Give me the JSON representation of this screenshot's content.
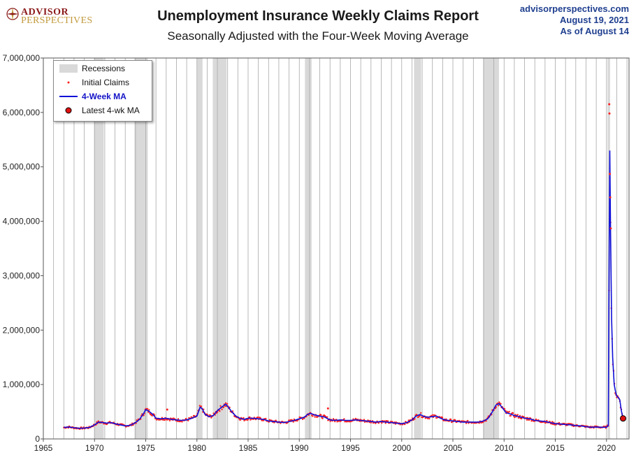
{
  "header": {
    "logo_line1": "ADVISOR",
    "logo_line2": "PERSPECTIVES",
    "title": "Unemployment Insurance Weekly Claims Report",
    "subtitle": "Seasonally Adjusted with the Four-Week Moving Average",
    "source_url": "advisorperspectives.com",
    "date": "August 19, 2021",
    "as_of": "As of August 14"
  },
  "legend": {
    "recessions": "Recessions",
    "initial_claims": "Initial Claims",
    "ma": "4-Week MA",
    "latest": "Latest 4-wk MA"
  },
  "colors": {
    "initial_claims": "#ff2020",
    "ma": "#1010d8",
    "recession": "#d9d9d9",
    "latest_marker": "#e01010"
  },
  "chart_data": {
    "type": "line",
    "title": "Unemployment Insurance Weekly Claims Report",
    "subtitle": "Seasonally Adjusted with the Four-Week Moving Average",
    "xlim": [
      1965,
      2022.2
    ],
    "ylim": [
      0,
      7000000
    ],
    "x_ticks": [
      1965,
      1970,
      1975,
      1980,
      1985,
      1990,
      1995,
      2000,
      2005,
      2010,
      2015,
      2020
    ],
    "y_ticks": [
      0,
      1000000,
      2000000,
      3000000,
      4000000,
      5000000,
      6000000,
      7000000
    ],
    "y_tick_labels": [
      "0",
      "1,000,000",
      "2,000,000",
      "3,000,000",
      "4,000,000",
      "5,000,000",
      "6,000,000",
      "7,000,000"
    ],
    "grid": "vertical",
    "legend_position": "top-left",
    "recessions": [
      [
        1969.95,
        1970.9
      ],
      [
        1973.9,
        1975.2
      ],
      [
        1980.0,
        1980.55
      ],
      [
        1981.55,
        1982.9
      ],
      [
        1990.55,
        1991.2
      ],
      [
        2001.2,
        2001.9
      ],
      [
        2007.95,
        2009.5
      ],
      [
        2020.1,
        2020.35
      ]
    ],
    "series": [
      {
        "name": "4-Week MA",
        "x": [
          1967.0,
          1967.5,
          1968.0,
          1968.5,
          1969.0,
          1969.5,
          1970.0,
          1970.4,
          1970.8,
          1971.2,
          1971.6,
          1972.0,
          1972.5,
          1973.0,
          1973.5,
          1974.0,
          1974.4,
          1974.8,
          1975.0,
          1975.3,
          1975.7,
          1976.0,
          1976.5,
          1977.0,
          1977.5,
          1978.0,
          1978.5,
          1979.0,
          1979.5,
          1980.0,
          1980.3,
          1980.5,
          1980.8,
          1981.2,
          1981.6,
          1982.0,
          1982.4,
          1982.8,
          1983.0,
          1983.4,
          1983.8,
          1984.2,
          1984.6,
          1985.0,
          1985.5,
          1986.0,
          1986.5,
          1987.0,
          1987.5,
          1988.0,
          1988.5,
          1989.0,
          1989.5,
          1990.0,
          1990.5,
          1990.8,
          1991.1,
          1991.5,
          1992.0,
          1992.5,
          1993.0,
          1993.5,
          1994.0,
          1994.5,
          1995.0,
          1995.5,
          1996.0,
          1996.5,
          1997.0,
          1997.5,
          1998.0,
          1998.5,
          1999.0,
          1999.5,
          2000.0,
          2000.5,
          2001.0,
          2001.4,
          2001.8,
          2002.2,
          2002.6,
          2003.0,
          2003.4,
          2003.8,
          2004.2,
          2004.6,
          2005.0,
          2005.5,
          2006.0,
          2006.5,
          2007.0,
          2007.5,
          2008.0,
          2008.4,
          2008.8,
          2009.2,
          2009.5,
          2009.8,
          2010.2,
          2010.6,
          2011.0,
          2011.5,
          2012.0,
          2012.5,
          2013.0,
          2013.5,
          2014.0,
          2014.5,
          2015.0,
          2015.5,
          2016.0,
          2016.5,
          2017.0,
          2017.5,
          2018.0,
          2018.5,
          2019.0,
          2019.5,
          2020.0,
          2020.18,
          2020.25,
          2020.32,
          2020.4,
          2020.5,
          2020.6,
          2020.75,
          2020.9,
          2021.0,
          2021.15,
          2021.3,
          2021.45,
          2021.62
        ],
        "values": [
          210000,
          220000,
          205000,
          195000,
          200000,
          210000,
          260000,
          310000,
          300000,
          290000,
          300000,
          280000,
          260000,
          240000,
          250000,
          300000,
          360000,
          470000,
          540000,
          510000,
          450000,
          380000,
          370000,
          380000,
          360000,
          350000,
          340000,
          350000,
          380000,
          420000,
          580000,
          560000,
          450000,
          410000,
          430000,
          520000,
          580000,
          640000,
          600000,
          500000,
          420000,
          380000,
          360000,
          380000,
          380000,
          370000,
          360000,
          330000,
          320000,
          310000,
          300000,
          320000,
          340000,
          370000,
          400000,
          450000,
          470000,
          440000,
          420000,
          400000,
          350000,
          340000,
          350000,
          340000,
          340000,
          350000,
          340000,
          330000,
          320000,
          310000,
          320000,
          310000,
          300000,
          290000,
          280000,
          300000,
          350000,
          420000,
          450000,
          410000,
          400000,
          410000,
          420000,
          380000,
          350000,
          340000,
          330000,
          320000,
          310000,
          310000,
          310000,
          310000,
          330000,
          370000,
          480000,
          620000,
          650000,
          580000,
          480000,
          460000,
          430000,
          410000,
          380000,
          370000,
          340000,
          330000,
          320000,
          300000,
          280000,
          275000,
          265000,
          260000,
          245000,
          240000,
          225000,
          215000,
          220000,
          215000,
          215000,
          250000,
          2900000,
          5300000,
          3800000,
          2200000,
          1500000,
          1000000,
          850000,
          790000,
          760000,
          720000,
          520000,
          380000
        ]
      },
      {
        "name": "Initial Claims",
        "outliers": [
          {
            "x": 2020.27,
            "y": 6150000
          },
          {
            "x": 2020.29,
            "y": 5980000
          },
          {
            "x": 2020.33,
            "y": 4870000
          },
          {
            "x": 2020.37,
            "y": 4440000
          },
          {
            "x": 2020.42,
            "y": 3870000
          },
          {
            "x": 1977.1,
            "y": 540000
          },
          {
            "x": 1992.8,
            "y": 560000
          }
        ]
      }
    ],
    "latest_point": {
      "x": 2021.62,
      "y": 377000
    }
  }
}
